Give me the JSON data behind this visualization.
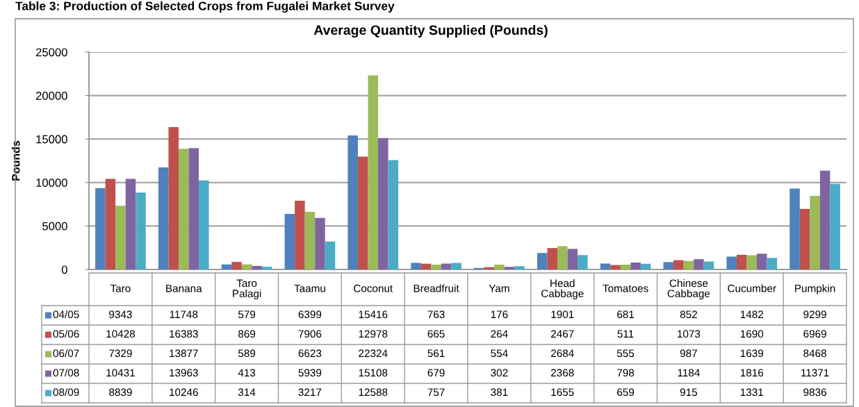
{
  "chart_data": {
    "type": "bar",
    "title": "Average Quantity Supplied (Pounds)",
    "ylabel": "Pounds",
    "annotations": [
      "Table 3: Production of Selected Crops from Fugalei Market Survey"
    ],
    "categories": [
      "Taro",
      "Banana",
      "Taro Palagi",
      "Taamu",
      "Coconut",
      "Breadfruit",
      "Yam",
      "Head Cabbage",
      "Tomatoes",
      "Chinese Cabbage",
      "Cucumber",
      "Pumpkin"
    ],
    "series": [
      {
        "name": "04/05",
        "color": "#4f81bd",
        "values": [
          9343,
          11748,
          579,
          6399,
          15416,
          763,
          176,
          1901,
          681,
          852,
          1482,
          9299
        ]
      },
      {
        "name": "05/06",
        "color": "#c0504d",
        "values": [
          10428,
          16383,
          869,
          7906,
          12978,
          665,
          264,
          2467,
          511,
          1073,
          1690,
          6969
        ]
      },
      {
        "name": "06/07",
        "color": "#9bbb59",
        "values": [
          7329,
          13877,
          589,
          6623,
          22324,
          561,
          554,
          2684,
          555,
          987,
          1639,
          8468
        ]
      },
      {
        "name": "07/08",
        "color": "#8064a2",
        "values": [
          10431,
          13963,
          413,
          5939,
          15108,
          679,
          302,
          2368,
          798,
          1184,
          1816,
          11371
        ]
      },
      {
        "name": "08/09",
        "color": "#4bacc6",
        "values": [
          8839,
          10246,
          314,
          3217,
          12588,
          757,
          381,
          1655,
          659,
          915,
          1331,
          9836
        ]
      }
    ],
    "ylim": [
      0,
      25000
    ],
    "yticks": [
      0,
      5000,
      10000,
      15000,
      20000,
      25000
    ],
    "grid": "y",
    "legend": "bottom left",
    "data_labels": true
  }
}
